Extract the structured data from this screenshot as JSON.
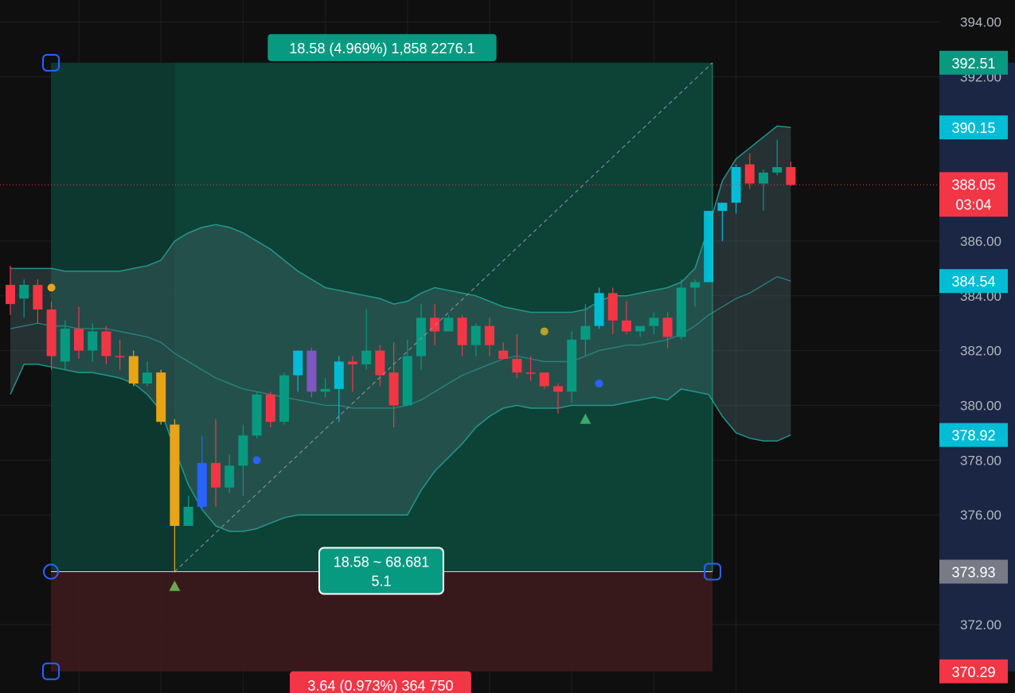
{
  "chart_data": {
    "type": "candlestick",
    "ylim": [
      369.5,
      394.8
    ],
    "y_ticks": [
      "394.00",
      "392.00",
      "386.00",
      "384.00",
      "382.00",
      "380.00",
      "378.00",
      "376.00",
      "372.00"
    ],
    "candles": [
      {
        "o": 384.4,
        "h": 385.1,
        "l": 383.3,
        "c": 383.7,
        "color": "#f23645"
      },
      {
        "o": 383.9,
        "h": 384.6,
        "l": 383.2,
        "c": 384.4,
        "color": "#089981"
      },
      {
        "o": 384.4,
        "h": 384.6,
        "l": 383.0,
        "c": 383.5,
        "color": "#f23645"
      },
      {
        "o": 383.5,
        "h": 383.8,
        "l": 381.3,
        "c": 381.8,
        "color": "#f23645"
      },
      {
        "o": 381.6,
        "h": 383.1,
        "l": 381.3,
        "c": 382.8,
        "color": "#089981"
      },
      {
        "o": 382.8,
        "h": 383.6,
        "l": 381.7,
        "c": 382.0,
        "color": "#f23645"
      },
      {
        "o": 382.0,
        "h": 383.0,
        "l": 381.6,
        "c": 382.7,
        "color": "#089981"
      },
      {
        "o": 382.7,
        "h": 382.9,
        "l": 381.5,
        "c": 381.8,
        "color": "#f23645"
      },
      {
        "o": 381.8,
        "h": 382.4,
        "l": 381.3,
        "c": 381.8,
        "color": "#f23645"
      },
      {
        "o": 381.8,
        "h": 382.0,
        "l": 380.7,
        "c": 380.8,
        "color": "#e8a317"
      },
      {
        "o": 380.8,
        "h": 381.6,
        "l": 380.7,
        "c": 381.2,
        "color": "#089981"
      },
      {
        "o": 381.2,
        "h": 381.3,
        "l": 379.3,
        "c": 379.4,
        "color": "#e8a317"
      },
      {
        "o": 379.3,
        "h": 379.5,
        "l": 373.9,
        "c": 375.6,
        "color": "#e8a317"
      },
      {
        "o": 375.6,
        "h": 376.7,
        "l": 375.6,
        "c": 376.3,
        "color": "#089981"
      },
      {
        "o": 376.3,
        "h": 378.9,
        "l": 376.2,
        "c": 377.9,
        "color": "#2962ff"
      },
      {
        "o": 377.9,
        "h": 379.5,
        "l": 376.3,
        "c": 377.0,
        "color": "#f23645"
      },
      {
        "o": 377.0,
        "h": 378.2,
        "l": 376.8,
        "c": 377.8,
        "color": "#089981"
      },
      {
        "o": 377.8,
        "h": 379.3,
        "l": 376.7,
        "c": 378.9,
        "color": "#089981"
      },
      {
        "o": 378.9,
        "h": 380.5,
        "l": 378.8,
        "c": 380.4,
        "color": "#089981"
      },
      {
        "o": 380.4,
        "h": 380.5,
        "l": 379.2,
        "c": 379.4,
        "color": "#f23645"
      },
      {
        "o": 379.4,
        "h": 381.2,
        "l": 379.3,
        "c": 381.1,
        "color": "#089981"
      },
      {
        "o": 381.1,
        "h": 382.0,
        "l": 380.5,
        "c": 382.0,
        "color": "#00bcd4"
      },
      {
        "o": 382.0,
        "h": 382.1,
        "l": 380.3,
        "c": 380.5,
        "color": "#7e57c2"
      },
      {
        "o": 380.5,
        "h": 381.0,
        "l": 380.3,
        "c": 380.6,
        "color": "#089981"
      },
      {
        "o": 380.6,
        "h": 381.8,
        "l": 379.4,
        "c": 381.6,
        "color": "#00bcd4"
      },
      {
        "o": 381.6,
        "h": 381.8,
        "l": 380.5,
        "c": 381.5,
        "color": "#f23645"
      },
      {
        "o": 381.5,
        "h": 383.5,
        "l": 381.3,
        "c": 382.0,
        "color": "#089981"
      },
      {
        "o": 382.0,
        "h": 382.2,
        "l": 380.7,
        "c": 381.1,
        "color": "#f23645"
      },
      {
        "o": 381.2,
        "h": 382.3,
        "l": 379.2,
        "c": 380.0,
        "color": "#f23645"
      },
      {
        "o": 380.0,
        "h": 382.4,
        "l": 380.0,
        "c": 381.8,
        "color": "#089981"
      },
      {
        "o": 381.8,
        "h": 383.7,
        "l": 381.3,
        "c": 383.2,
        "color": "#089981"
      },
      {
        "o": 383.2,
        "h": 383.7,
        "l": 382.2,
        "c": 382.7,
        "color": "#f23645"
      },
      {
        "o": 382.7,
        "h": 383.3,
        "l": 382.7,
        "c": 383.2,
        "color": "#089981"
      },
      {
        "o": 383.2,
        "h": 383.3,
        "l": 381.8,
        "c": 382.2,
        "color": "#f23645"
      },
      {
        "o": 382.2,
        "h": 383.0,
        "l": 381.8,
        "c": 382.9,
        "color": "#089981"
      },
      {
        "o": 382.9,
        "h": 383.2,
        "l": 381.8,
        "c": 382.2,
        "color": "#f23645"
      },
      {
        "o": 382.0,
        "h": 382.3,
        "l": 381.7,
        "c": 381.7,
        "color": "#f23645"
      },
      {
        "o": 381.7,
        "h": 382.6,
        "l": 381.0,
        "c": 381.2,
        "color": "#f23645"
      },
      {
        "o": 381.2,
        "h": 381.8,
        "l": 380.9,
        "c": 381.2,
        "color": "#f23645"
      },
      {
        "o": 381.2,
        "h": 381.2,
        "l": 380.6,
        "c": 380.7,
        "color": "#f23645"
      },
      {
        "o": 380.7,
        "h": 380.8,
        "l": 379.7,
        "c": 380.5,
        "color": "#f23645"
      },
      {
        "o": 380.5,
        "h": 382.7,
        "l": 380.1,
        "c": 382.4,
        "color": "#089981"
      },
      {
        "o": 382.4,
        "h": 383.7,
        "l": 381.8,
        "c": 382.9,
        "color": "#089981"
      },
      {
        "o": 382.9,
        "h": 384.3,
        "l": 382.8,
        "c": 384.1,
        "color": "#00bcd4"
      },
      {
        "o": 384.1,
        "h": 384.3,
        "l": 382.6,
        "c": 383.1,
        "color": "#f23645"
      },
      {
        "o": 383.1,
        "h": 383.8,
        "l": 382.6,
        "c": 382.7,
        "color": "#f23645"
      },
      {
        "o": 382.7,
        "h": 382.9,
        "l": 382.5,
        "c": 382.9,
        "color": "#089981"
      },
      {
        "o": 382.9,
        "h": 383.4,
        "l": 382.6,
        "c": 383.2,
        "color": "#089981"
      },
      {
        "o": 383.2,
        "h": 383.4,
        "l": 382.1,
        "c": 382.5,
        "color": "#f23645"
      },
      {
        "o": 382.5,
        "h": 384.6,
        "l": 382.4,
        "c": 384.3,
        "color": "#089981"
      },
      {
        "o": 384.3,
        "h": 384.6,
        "l": 383.6,
        "c": 384.5,
        "color": "#089981"
      },
      {
        "o": 384.5,
        "h": 387.1,
        "l": 384.5,
        "c": 387.1,
        "color": "#00bcd4"
      },
      {
        "o": 387.1,
        "h": 387.4,
        "l": 386.0,
        "c": 387.4,
        "color": "#00bcd4"
      },
      {
        "o": 387.4,
        "h": 388.8,
        "l": 387.0,
        "c": 388.7,
        "color": "#00bcd4"
      },
      {
        "o": 388.8,
        "h": 389.2,
        "l": 387.9,
        "c": 388.1,
        "color": "#f23645"
      },
      {
        "o": 388.1,
        "h": 388.6,
        "l": 387.1,
        "c": 388.5,
        "color": "#089981"
      },
      {
        "o": 388.5,
        "h": 389.7,
        "l": 388.4,
        "c": 388.7,
        "color": "#089981"
      },
      {
        "o": 388.7,
        "h": 388.9,
        "l": 388.0,
        "c": 388.05,
        "color": "#f23645"
      }
    ],
    "bollinger": {
      "upper": [
        385.0,
        385.0,
        385.0,
        385.0,
        384.9,
        384.9,
        384.9,
        384.9,
        384.9,
        385.0,
        385.1,
        385.3,
        386.0,
        386.3,
        386.5,
        386.6,
        386.5,
        386.3,
        386.0,
        385.7,
        385.3,
        384.9,
        384.6,
        384.3,
        384.2,
        384.1,
        384.0,
        383.9,
        383.7,
        383.8,
        384.1,
        384.3,
        384.2,
        384.1,
        384.0,
        383.8,
        383.6,
        383.5,
        383.4,
        383.4,
        383.4,
        383.4,
        383.5,
        383.8,
        384.0,
        384.0,
        384.1,
        384.2,
        384.3,
        384.5,
        385.0,
        386.5,
        388.2,
        389.0,
        389.4,
        389.8,
        390.2,
        390.15
      ],
      "middle": [
        382.8,
        382.9,
        383.0,
        382.9,
        382.9,
        382.8,
        382.8,
        382.8,
        382.7,
        382.6,
        382.5,
        382.3,
        381.9,
        381.6,
        381.3,
        381.0,
        380.8,
        380.6,
        380.5,
        380.4,
        380.3,
        380.2,
        380.1,
        380.0,
        380.0,
        379.9,
        379.9,
        379.9,
        379.9,
        380.0,
        380.2,
        380.5,
        380.8,
        381.1,
        381.3,
        381.5,
        381.7,
        381.8,
        381.7,
        381.6,
        381.6,
        381.6,
        381.8,
        382.0,
        382.1,
        382.2,
        382.2,
        382.3,
        382.4,
        382.6,
        382.9,
        383.3,
        383.6,
        383.9,
        384.1,
        384.4,
        384.7,
        384.54
      ],
      "lower": [
        380.4,
        381.5,
        381.5,
        381.4,
        381.3,
        381.2,
        381.2,
        381.1,
        381.0,
        380.8,
        380.4,
        379.8,
        378.4,
        377.1,
        376.2,
        375.6,
        375.4,
        375.4,
        375.5,
        375.7,
        375.9,
        376.0,
        376.0,
        376.0,
        376.0,
        376.0,
        376.0,
        376.0,
        376.0,
        376.0,
        376.9,
        377.6,
        378.1,
        378.6,
        379.2,
        379.6,
        379.9,
        380.0,
        379.9,
        379.9,
        379.9,
        380.0,
        380.0,
        380.0,
        380.0,
        380.1,
        380.2,
        380.3,
        380.2,
        380.6,
        380.5,
        380.4,
        379.6,
        379.0,
        378.8,
        378.7,
        378.7,
        378.92
      ]
    },
    "position": {
      "entry": 373.93,
      "target": 392.51,
      "stop": 370.29,
      "target_label": "18.58 (4.969%) 1,858 2276.1",
      "stop_label": "3.64 (0.973%) 364 750",
      "ratio_line1": "18.58 ~ 68.681",
      "ratio_line2": "5.1"
    },
    "markers": [
      {
        "type": "dot",
        "color": "#e8a317",
        "i": 3,
        "y": 384.3
      },
      {
        "type": "dot",
        "color": "#2962ff",
        "i": 18,
        "y": 378.0
      },
      {
        "type": "dot",
        "color": "#b5a32a",
        "i": 39,
        "y": 382.7
      },
      {
        "type": "dot",
        "color": "#2962ff",
        "i": 43,
        "y": 380.8
      },
      {
        "type": "triangle",
        "color": "#6aa84f",
        "i": 12,
        "y": 373.4
      },
      {
        "type": "triangle",
        "color": "#3ca86b",
        "i": 42,
        "y": 379.5
      }
    ],
    "current_price": 388.05
  },
  "price_tags": [
    {
      "label": "392.51",
      "color": "#089981",
      "value": 392.51
    },
    {
      "label": "390.15",
      "color": "#00bcd4",
      "value": 390.15
    },
    {
      "label": "388.05",
      "sub": "03:04",
      "color": "#f23645",
      "value": 388.05
    },
    {
      "label": "384.54",
      "color": "#00bcd4",
      "value": 384.54
    },
    {
      "label": "378.92",
      "color": "#00bcd4",
      "value": 378.92
    },
    {
      "label": "373.93",
      "color": "#787b86",
      "value": 373.93
    },
    {
      "label": "370.29",
      "color": "#f23645",
      "value": 370.29
    }
  ]
}
